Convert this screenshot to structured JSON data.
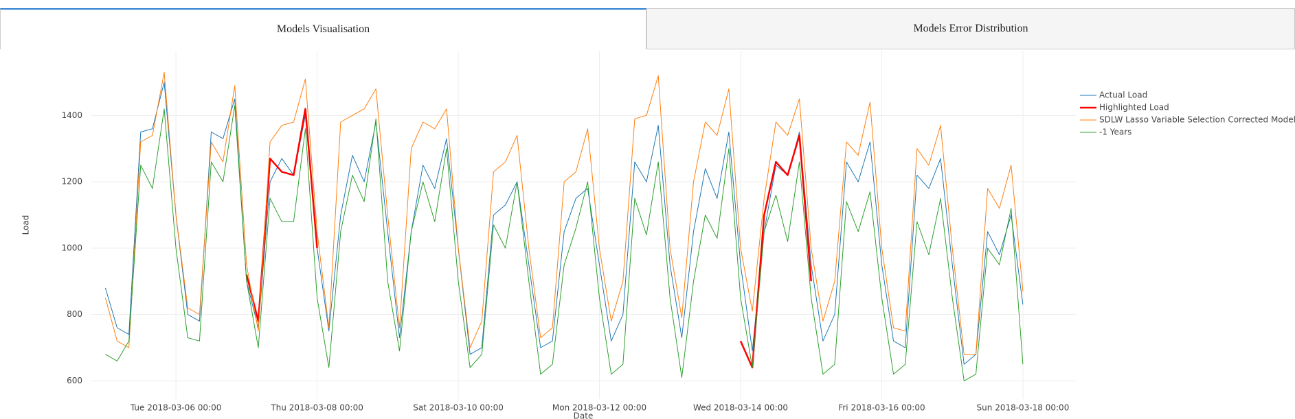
{
  "tabs": [
    {
      "label": "Models Visualisation",
      "active": true
    },
    {
      "label": "Models Error Distribution",
      "active": false
    }
  ],
  "chart_data": {
    "type": "line",
    "x_label": "Date",
    "y_label": "Load",
    "grid": true,
    "legend": "top-right",
    "x": [
      "2018-03-05 00:00",
      "2018-03-05 04:00",
      "2018-03-05 08:00",
      "2018-03-05 12:00",
      "2018-03-05 16:00",
      "2018-03-05 20:00",
      "2018-03-06 00:00",
      "2018-03-06 04:00",
      "2018-03-06 08:00",
      "2018-03-06 12:00",
      "2018-03-06 16:00",
      "2018-03-06 20:00",
      "2018-03-07 00:00",
      "2018-03-07 04:00",
      "2018-03-07 08:00",
      "2018-03-07 12:00",
      "2018-03-07 16:00",
      "2018-03-07 20:00",
      "2018-03-08 00:00",
      "2018-03-08 04:00",
      "2018-03-08 08:00",
      "2018-03-08 12:00",
      "2018-03-08 16:00",
      "2018-03-08 20:00",
      "2018-03-09 00:00",
      "2018-03-09 04:00",
      "2018-03-09 08:00",
      "2018-03-09 12:00",
      "2018-03-09 16:00",
      "2018-03-09 20:00",
      "2018-03-10 00:00",
      "2018-03-10 04:00",
      "2018-03-10 08:00",
      "2018-03-10 12:00",
      "2018-03-10 16:00",
      "2018-03-10 20:00",
      "2018-03-11 00:00",
      "2018-03-11 04:00",
      "2018-03-11 08:00",
      "2018-03-11 12:00",
      "2018-03-11 16:00",
      "2018-03-11 20:00",
      "2018-03-12 00:00",
      "2018-03-12 04:00",
      "2018-03-12 08:00",
      "2018-03-12 12:00",
      "2018-03-12 16:00",
      "2018-03-12 20:00",
      "2018-03-13 00:00",
      "2018-03-13 04:00",
      "2018-03-13 08:00",
      "2018-03-13 12:00",
      "2018-03-13 16:00",
      "2018-03-13 20:00",
      "2018-03-14 00:00",
      "2018-03-14 04:00",
      "2018-03-14 08:00",
      "2018-03-14 12:00",
      "2018-03-14 16:00",
      "2018-03-14 20:00",
      "2018-03-15 00:00",
      "2018-03-15 04:00",
      "2018-03-15 08:00",
      "2018-03-15 12:00",
      "2018-03-15 16:00",
      "2018-03-15 20:00",
      "2018-03-16 00:00",
      "2018-03-16 04:00",
      "2018-03-16 08:00",
      "2018-03-16 12:00",
      "2018-03-16 16:00",
      "2018-03-16 20:00",
      "2018-03-17 00:00",
      "2018-03-17 04:00",
      "2018-03-17 08:00",
      "2018-03-17 12:00",
      "2018-03-17 16:00",
      "2018-03-17 20:00",
      "2018-03-18 00:00"
    ],
    "series": [
      {
        "name": "Actual Load",
        "color": "#1f77b4",
        "width": 1,
        "values": [
          880,
          760,
          740,
          1350,
          1360,
          1500,
          1100,
          800,
          780,
          1350,
          1330,
          1450,
          900,
          760,
          1200,
          1270,
          1220,
          1400,
          1000,
          750,
          1100,
          1280,
          1200,
          1380,
          1050,
          730,
          1050,
          1250,
          1180,
          1330,
          1000,
          680,
          700,
          1100,
          1130,
          1200,
          950,
          700,
          720,
          1050,
          1150,
          1180,
          950,
          720,
          800,
          1260,
          1200,
          1370,
          950,
          730,
          1050,
          1240,
          1150,
          1350,
          950,
          690,
          1050,
          1250,
          1220,
          1350,
          950,
          720,
          800,
          1260,
          1200,
          1320,
          950,
          720,
          700,
          1220,
          1180,
          1270,
          950,
          650,
          680,
          1050,
          980,
          1100,
          830
        ]
      },
      {
        "name": "Highlighted Load",
        "color": "#ff0000",
        "width": 2.5,
        "values": [
          null,
          null,
          null,
          null,
          null,
          null,
          null,
          null,
          null,
          null,
          null,
          null,
          920,
          780,
          1270,
          1230,
          1220,
          1420,
          1000,
          null,
          null,
          null,
          null,
          null,
          null,
          null,
          null,
          null,
          null,
          null,
          null,
          null,
          null,
          null,
          null,
          null,
          null,
          null,
          null,
          null,
          null,
          null,
          null,
          null,
          null,
          null,
          null,
          null,
          null,
          null,
          null,
          null,
          null,
          null,
          720,
          640,
          1100,
          1260,
          1220,
          1340,
          900,
          null,
          null,
          null,
          null,
          null,
          null,
          null,
          null,
          null,
          null,
          null,
          null,
          null,
          null,
          null,
          null,
          null,
          null
        ]
      },
      {
        "name": "SDLW Lasso Variable Selection Corrected Model",
        "color": "#ff7f0e",
        "width": 1,
        "values": [
          850,
          720,
          700,
          1320,
          1340,
          1530,
          1100,
          820,
          800,
          1320,
          1260,
          1490,
          950,
          750,
          1320,
          1370,
          1380,
          1510,
          1050,
          760,
          1380,
          1400,
          1420,
          1480,
          1100,
          760,
          1300,
          1380,
          1360,
          1420,
          1000,
          700,
          780,
          1230,
          1260,
          1340,
          1000,
          730,
          760,
          1200,
          1230,
          1360,
          1000,
          780,
          900,
          1390,
          1400,
          1520,
          1000,
          790,
          1200,
          1380,
          1340,
          1480,
          1000,
          810,
          1150,
          1380,
          1340,
          1450,
          1000,
          780,
          900,
          1320,
          1280,
          1440,
          1000,
          760,
          750,
          1300,
          1250,
          1370,
          1000,
          680,
          680,
          1180,
          1120,
          1250,
          870
        ]
      },
      {
        "name": "-1 Years",
        "color": "#2ca02c",
        "width": 1,
        "values": [
          680,
          660,
          720,
          1250,
          1180,
          1420,
          1000,
          730,
          720,
          1260,
          1200,
          1430,
          900,
          700,
          1150,
          1080,
          1080,
          1360,
          850,
          640,
          1050,
          1220,
          1140,
          1390,
          900,
          690,
          1050,
          1200,
          1080,
          1300,
          900,
          640,
          680,
          1070,
          1000,
          1200,
          900,
          620,
          650,
          950,
          1060,
          1200,
          850,
          620,
          650,
          1150,
          1040,
          1260,
          850,
          610,
          900,
          1100,
          1030,
          1300,
          850,
          640,
          1050,
          1160,
          1020,
          1260,
          850,
          620,
          650,
          1140,
          1050,
          1170,
          850,
          620,
          650,
          1080,
          980,
          1150,
          850,
          600,
          620,
          1000,
          950,
          1120,
          650
        ]
      }
    ],
    "xlim": [
      "2018-03-04 19:00",
      "2018-03-18 18:00"
    ],
    "xticks": [
      {
        "value": "2018-03-06 00:00",
        "label": "Tue 2018-03-06 00:00"
      },
      {
        "value": "2018-03-08 00:00",
        "label": "Thu 2018-03-08 00:00"
      },
      {
        "value": "2018-03-10 00:00",
        "label": "Sat 2018-03-10 00:00"
      },
      {
        "value": "2018-03-12 00:00",
        "label": "Mon 2018-03-12 00:00"
      },
      {
        "value": "2018-03-14 00:00",
        "label": "Wed 2018-03-14 00:00"
      },
      {
        "value": "2018-03-16 00:00",
        "label": "Fri 2018-03-16 00:00"
      },
      {
        "value": "2018-03-18 00:00",
        "label": "Sun 2018-03-18 00:00"
      }
    ],
    "ylim": [
      545,
      1595
    ],
    "yticks": [
      600,
      800,
      1000,
      1200,
      1400
    ]
  }
}
